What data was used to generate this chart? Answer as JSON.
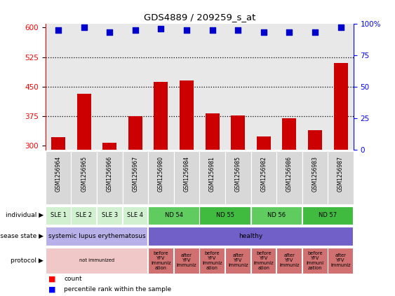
{
  "title": "GDS4889 / 209259_s_at",
  "samples": [
    "GSM1256964",
    "GSM1256965",
    "GSM1256966",
    "GSM1256967",
    "GSM1256980",
    "GSM1256984",
    "GSM1256981",
    "GSM1256985",
    "GSM1256982",
    "GSM1256986",
    "GSM1256983",
    "GSM1256987"
  ],
  "counts": [
    322,
    432,
    308,
    375,
    462,
    466,
    382,
    377,
    323,
    370,
    340,
    510
  ],
  "percentiles": [
    95,
    97,
    93,
    95,
    96,
    95,
    95,
    95,
    93,
    93,
    93,
    97
  ],
  "ylim_left": [
    290,
    610
  ],
  "yticks_left": [
    300,
    375,
    450,
    525,
    600
  ],
  "yticks_right": [
    0,
    25,
    50,
    75,
    100
  ],
  "bar_color": "#cc0000",
  "dot_color": "#0000cc",
  "individual_groups": [
    {
      "label": "SLE 1",
      "start": 0,
      "end": 1,
      "color": "#d0f0d0"
    },
    {
      "label": "SLE 2",
      "start": 1,
      "end": 2,
      "color": "#d0f0d0"
    },
    {
      "label": "SLE 3",
      "start": 2,
      "end": 3,
      "color": "#d0f0d0"
    },
    {
      "label": "SLE 4",
      "start": 3,
      "end": 4,
      "color": "#d0f0d0"
    },
    {
      "label": "ND 54",
      "start": 4,
      "end": 6,
      "color": "#60cc60"
    },
    {
      "label": "ND 55",
      "start": 6,
      "end": 8,
      "color": "#40bb40"
    },
    {
      "label": "ND 56",
      "start": 8,
      "end": 10,
      "color": "#60cc60"
    },
    {
      "label": "ND 57",
      "start": 10,
      "end": 12,
      "color": "#40bb40"
    }
  ],
  "disease_groups": [
    {
      "label": "systemic lupus erythematosus",
      "start": 0,
      "end": 4,
      "color": "#b8b0e8"
    },
    {
      "label": "healthy",
      "start": 4,
      "end": 12,
      "color": "#7060c8"
    }
  ],
  "protocol_groups": [
    {
      "label": "not immunized",
      "start": 0,
      "end": 4,
      "color": "#f0c8c8"
    },
    {
      "label": "before\nYFV\nimmuniz\nation",
      "start": 4,
      "end": 5,
      "color": "#d07070"
    },
    {
      "label": "after\nYFV\nimmuniz",
      "start": 5,
      "end": 6,
      "color": "#d07070"
    },
    {
      "label": "before\nYFV\nimmuniz\nation",
      "start": 6,
      "end": 7,
      "color": "#d07070"
    },
    {
      "label": "after\nYFV\nimmuniz",
      "start": 7,
      "end": 8,
      "color": "#d07070"
    },
    {
      "label": "before\nYFV\nimmuniz\nation",
      "start": 8,
      "end": 9,
      "color": "#d07070"
    },
    {
      "label": "after\nYFV\nimmuniz",
      "start": 9,
      "end": 10,
      "color": "#d07070"
    },
    {
      "label": "before\nYFV\nimmuni\nzation",
      "start": 10,
      "end": 11,
      "color": "#d07070"
    },
    {
      "label": "after\nYFV\nimmuniz",
      "start": 11,
      "end": 12,
      "color": "#d07070"
    }
  ],
  "row_labels": [
    "individual",
    "disease state",
    "protocol"
  ],
  "dotted_lines": [
    375,
    450,
    525
  ]
}
